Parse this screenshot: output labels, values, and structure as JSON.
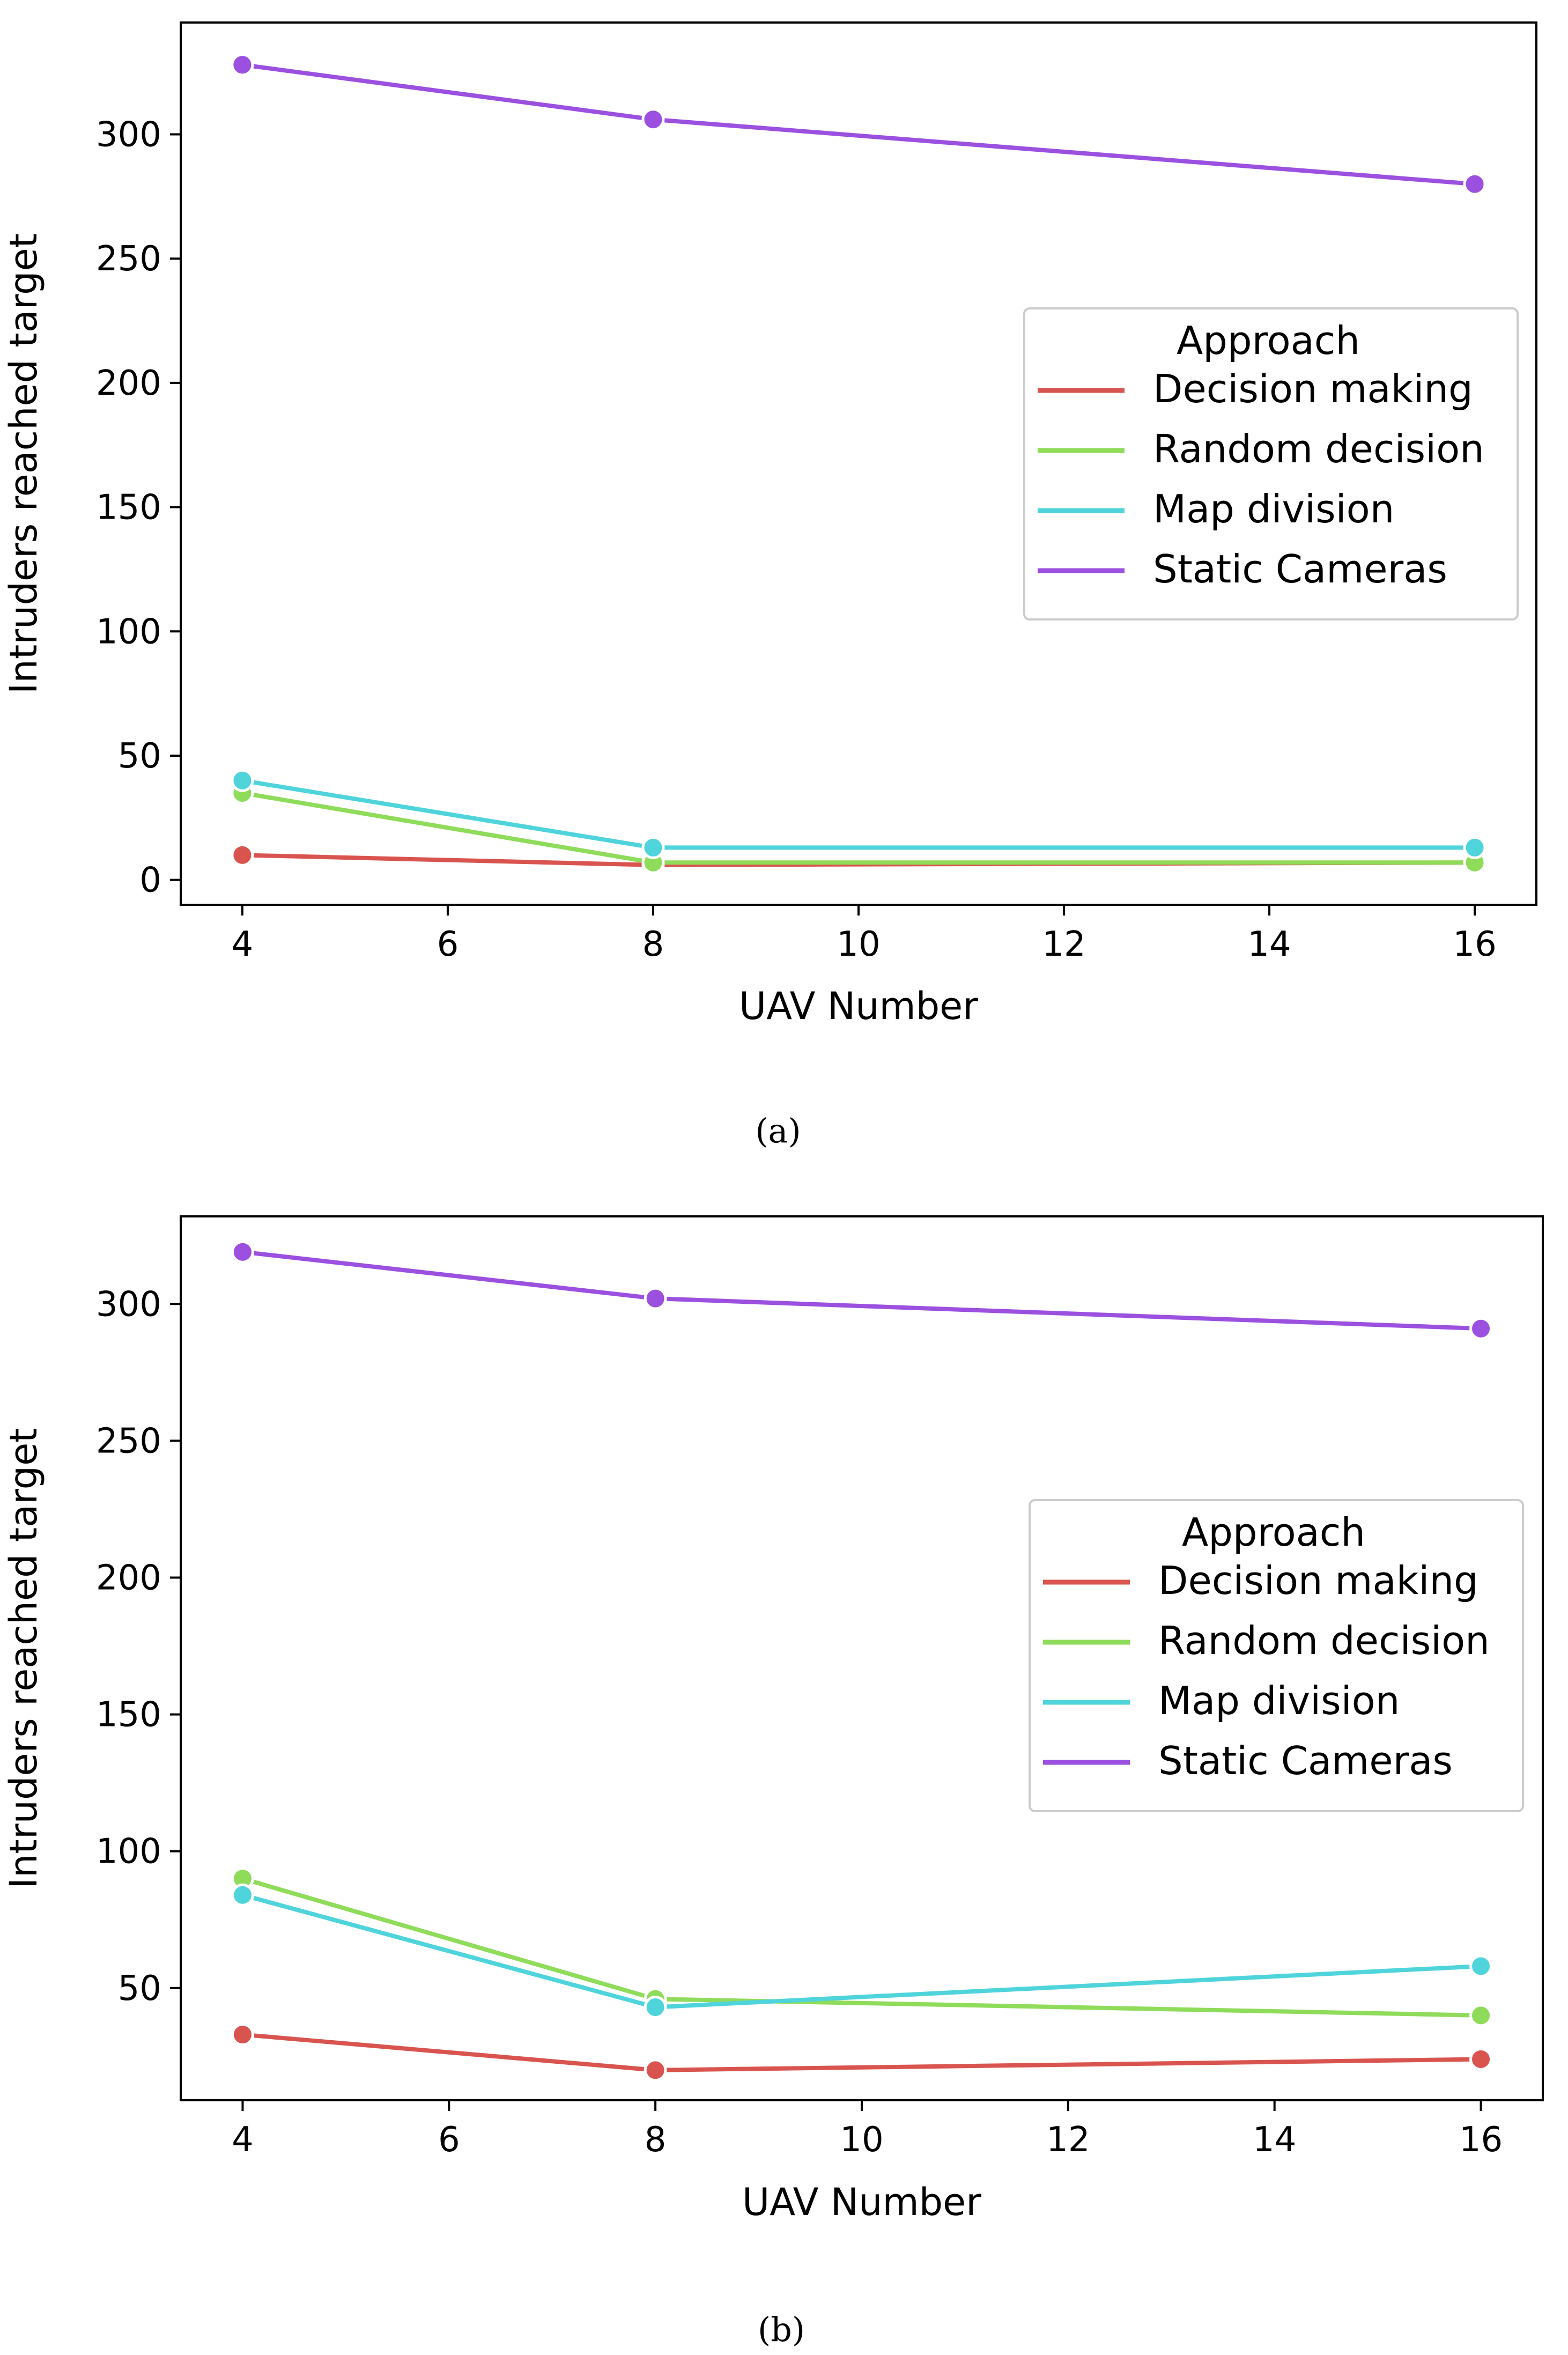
{
  "chart_data": [
    {
      "type": "line",
      "caption": "(a)",
      "xlabel": "UAV Number",
      "ylabel": "Intruders reached target",
      "x": [
        4,
        8,
        16
      ],
      "xlim": [
        3.4,
        16.6
      ],
      "ylim": [
        -10,
        345
      ],
      "xticks": [
        "4",
        "6",
        "8",
        "10",
        "12",
        "14",
        "16"
      ],
      "yticks": [
        "0",
        "50",
        "100",
        "150",
        "200",
        "250",
        "300"
      ],
      "legend_title": "Approach",
      "series": [
        {
          "name": "Decision making",
          "color": "#d9544f",
          "values": [
            10,
            6,
            7
          ]
        },
        {
          "name": "Random decision",
          "color": "#8fdb5a",
          "values": [
            35,
            7,
            7
          ]
        },
        {
          "name": "Map division",
          "color": "#4fd4dc",
          "values": [
            40,
            13,
            13
          ]
        },
        {
          "name": "Static Cameras",
          "color": "#9b50e0",
          "values": [
            328,
            306,
            280
          ]
        }
      ]
    },
    {
      "type": "line",
      "caption": "(b)",
      "xlabel": "UAV Number",
      "ylabel": "Intruders reached target",
      "x": [
        4,
        8,
        16
      ],
      "xlim": [
        3.4,
        16.6
      ],
      "ylim": [
        9,
        332
      ],
      "xticks": [
        "4",
        "6",
        "8",
        "10",
        "12",
        "14",
        "16"
      ],
      "yticks": [
        "50",
        "100",
        "150",
        "200",
        "250",
        "300"
      ],
      "legend_title": "Approach",
      "series": [
        {
          "name": "Decision making",
          "color": "#d9544f",
          "values": [
            33,
            20,
            24
          ]
        },
        {
          "name": "Random decision",
          "color": "#8fdb5a",
          "values": [
            90,
            46,
            40
          ]
        },
        {
          "name": "Map division",
          "color": "#4fd4dc",
          "values": [
            84,
            43,
            58
          ]
        },
        {
          "name": "Static Cameras",
          "color": "#9b50e0",
          "values": [
            319,
            302,
            291
          ]
        }
      ]
    }
  ]
}
